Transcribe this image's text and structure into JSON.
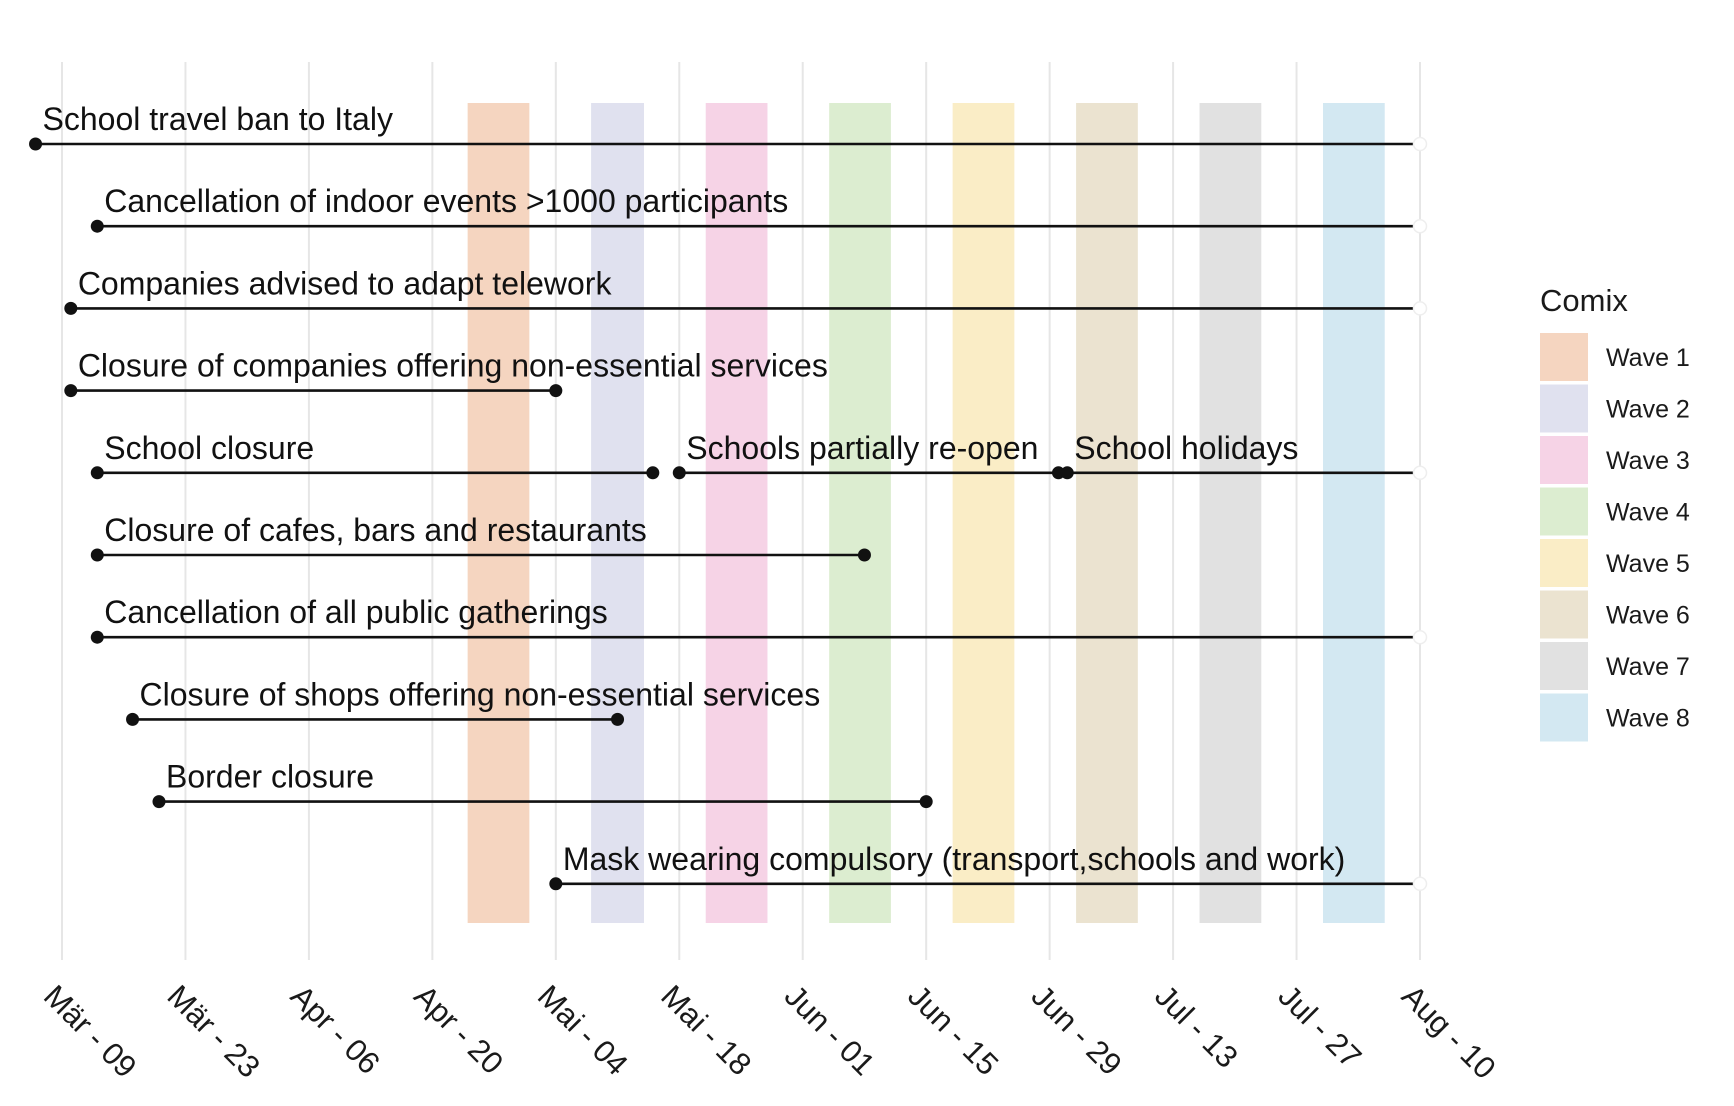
{
  "chart_data": {
    "type": "timeline",
    "title": "",
    "xlabel": "",
    "ylabel": "",
    "x_ticks": [
      "Mär - 09",
      "Mär - 23",
      "Apr - 06",
      "Apr - 20",
      "Mai - 04",
      "Mai - 18",
      "Jun - 01",
      "Jun - 15",
      "Jun - 29",
      "Jul - 13",
      "Jul - 27",
      "Aug - 10"
    ],
    "x_tick_dates": [
      "2020-03-09",
      "2020-03-23",
      "2020-04-06",
      "2020-04-20",
      "2020-05-04",
      "2020-05-18",
      "2020-06-01",
      "2020-06-15",
      "2020-06-29",
      "2020-07-13",
      "2020-07-27",
      "2020-08-10"
    ],
    "xlim": [
      "2020-03-06",
      "2020-08-10"
    ],
    "grid": "vertical",
    "waves": [
      {
        "name": "Wave 1",
        "start": "2020-04-24",
        "end": "2020-05-01",
        "color": "#f5d5c0"
      },
      {
        "name": "Wave 2",
        "start": "2020-05-08",
        "end": "2020-05-14",
        "color": "#e0e1ef"
      },
      {
        "name": "Wave 3",
        "start": "2020-05-21",
        "end": "2020-05-28",
        "color": "#f6d3e6"
      },
      {
        "name": "Wave 4",
        "start": "2020-06-04",
        "end": "2020-06-11",
        "color": "#dcedd0"
      },
      {
        "name": "Wave 5",
        "start": "2020-06-18",
        "end": "2020-06-25",
        "color": "#faedc6"
      },
      {
        "name": "Wave 6",
        "start": "2020-07-02",
        "end": "2020-07-09",
        "color": "#ebe3d0"
      },
      {
        "name": "Wave 7",
        "start": "2020-07-16",
        "end": "2020-07-23",
        "color": "#e1e1e1"
      },
      {
        "name": "Wave 8",
        "start": "2020-07-30",
        "end": "2020-08-06",
        "color": "#d3e8f2"
      }
    ],
    "measures": [
      {
        "label": "School travel ban to Italy",
        "segments": [
          {
            "start": "2020-03-06",
            "end": "2020-08-10",
            "ongoing": true
          }
        ]
      },
      {
        "label": "Cancellation of indoor events >1000 participants",
        "segments": [
          {
            "start": "2020-03-13",
            "end": "2020-08-10",
            "ongoing": true
          }
        ]
      },
      {
        "label": "Companies advised to adapt telework",
        "segments": [
          {
            "start": "2020-03-10",
            "end": "2020-08-10",
            "ongoing": true
          }
        ]
      },
      {
        "label": "Closure of companies offering non-essential services",
        "segments": [
          {
            "start": "2020-03-10",
            "end": "2020-05-04",
            "ongoing": false
          }
        ]
      },
      {
        "label": "School closure",
        "segments": [
          {
            "label": "School closure",
            "start": "2020-03-13",
            "end": "2020-05-15",
            "ongoing": false
          },
          {
            "label": "Schools partially re-open",
            "start": "2020-05-18",
            "end": "2020-06-30",
            "ongoing": false
          },
          {
            "label": "School holidays",
            "start": "2020-07-01",
            "end": "2020-08-10",
            "ongoing": true
          }
        ]
      },
      {
        "label": "Closure of cafes, bars and restaurants",
        "segments": [
          {
            "start": "2020-03-13",
            "end": "2020-06-08",
            "ongoing": false
          }
        ]
      },
      {
        "label": "Cancellation of all public gatherings",
        "segments": [
          {
            "start": "2020-03-13",
            "end": "2020-08-10",
            "ongoing": true
          }
        ]
      },
      {
        "label": "Closure of shops offering non-essential services",
        "segments": [
          {
            "start": "2020-03-17",
            "end": "2020-05-11",
            "ongoing": false
          }
        ]
      },
      {
        "label": "Border closure",
        "segments": [
          {
            "start": "2020-03-20",
            "end": "2020-06-15",
            "ongoing": false
          }
        ]
      },
      {
        "label": "Mask wearing compulsory (transport,schools and work)",
        "segments": [
          {
            "start": "2020-05-04",
            "end": "2020-08-10",
            "ongoing": true
          }
        ]
      }
    ],
    "legend": {
      "title": "Comix",
      "position": "right"
    }
  }
}
